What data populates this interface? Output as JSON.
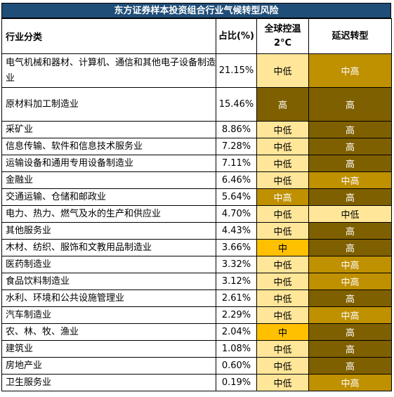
{
  "title": "东方证券样本投资组合行业气候转型风险",
  "headers": {
    "industry": "行业分类",
    "share": "占比(%)",
    "scenario_2c": "全球控温2°C",
    "delayed": "延迟转型"
  },
  "level_colors": {
    "中低": "#ffe699",
    "中": "#ffc000",
    "中高": "#bf9000",
    "高": "#7f6000"
  },
  "rows": [
    {
      "industry": "电气机械和器材、计算机、通信和其他电子设备制造业",
      "share": "21.15%",
      "scenario_2c": "中低",
      "delayed": "中高"
    },
    {
      "industry": "原材料加工制造业",
      "share": "15.46%",
      "scenario_2c": "高",
      "delayed": "高"
    },
    {
      "industry": "采矿业",
      "share": "8.86%",
      "scenario_2c": "中低",
      "delayed": "高"
    },
    {
      "industry": "信息传输、软件和信息技术服务业",
      "share": "7.28%",
      "scenario_2c": "中低",
      "delayed": "高"
    },
    {
      "industry": "运输设备和通用专用设备制造业",
      "share": "7.11%",
      "scenario_2c": "中低",
      "delayed": "高"
    },
    {
      "industry": "金融业",
      "share": "6.46%",
      "scenario_2c": "中低",
      "delayed": "中高"
    },
    {
      "industry": "交通运输、仓储和邮政业",
      "share": "5.64%",
      "scenario_2c": "中高",
      "delayed": "高"
    },
    {
      "industry": "电力、热力、燃气及水的生产和供应业",
      "share": "4.70%",
      "scenario_2c": "中低",
      "delayed": "中低"
    },
    {
      "industry": "其他服务业",
      "share": "4.43%",
      "scenario_2c": "中低",
      "delayed": "高"
    },
    {
      "industry": "木材、纺织、服饰和文教用品制造业",
      "share": "3.66%",
      "scenario_2c": "中",
      "delayed": "高"
    },
    {
      "industry": "医药制造业",
      "share": "3.32%",
      "scenario_2c": "中低",
      "delayed": "中高"
    },
    {
      "industry": "食品饮料制造业",
      "share": "3.12%",
      "scenario_2c": "中低",
      "delayed": "中高"
    },
    {
      "industry": "水利、环境和公共设施管理业",
      "share": "2.61%",
      "scenario_2c": "中低",
      "delayed": "高"
    },
    {
      "industry": "汽车制造业",
      "share": "2.29%",
      "scenario_2c": "中低",
      "delayed": "中高"
    },
    {
      "industry": "农、林、牧、渔业",
      "share": "2.04%",
      "scenario_2c": "中",
      "delayed": "高"
    },
    {
      "industry": "建筑业",
      "share": "1.08%",
      "scenario_2c": "中低",
      "delayed": "高"
    },
    {
      "industry": "房地产业",
      "share": "0.60%",
      "scenario_2c": "中低",
      "delayed": "高"
    },
    {
      "industry": "卫生服务业",
      "share": "0.19%",
      "scenario_2c": "中低",
      "delayed": "中高"
    }
  ]
}
